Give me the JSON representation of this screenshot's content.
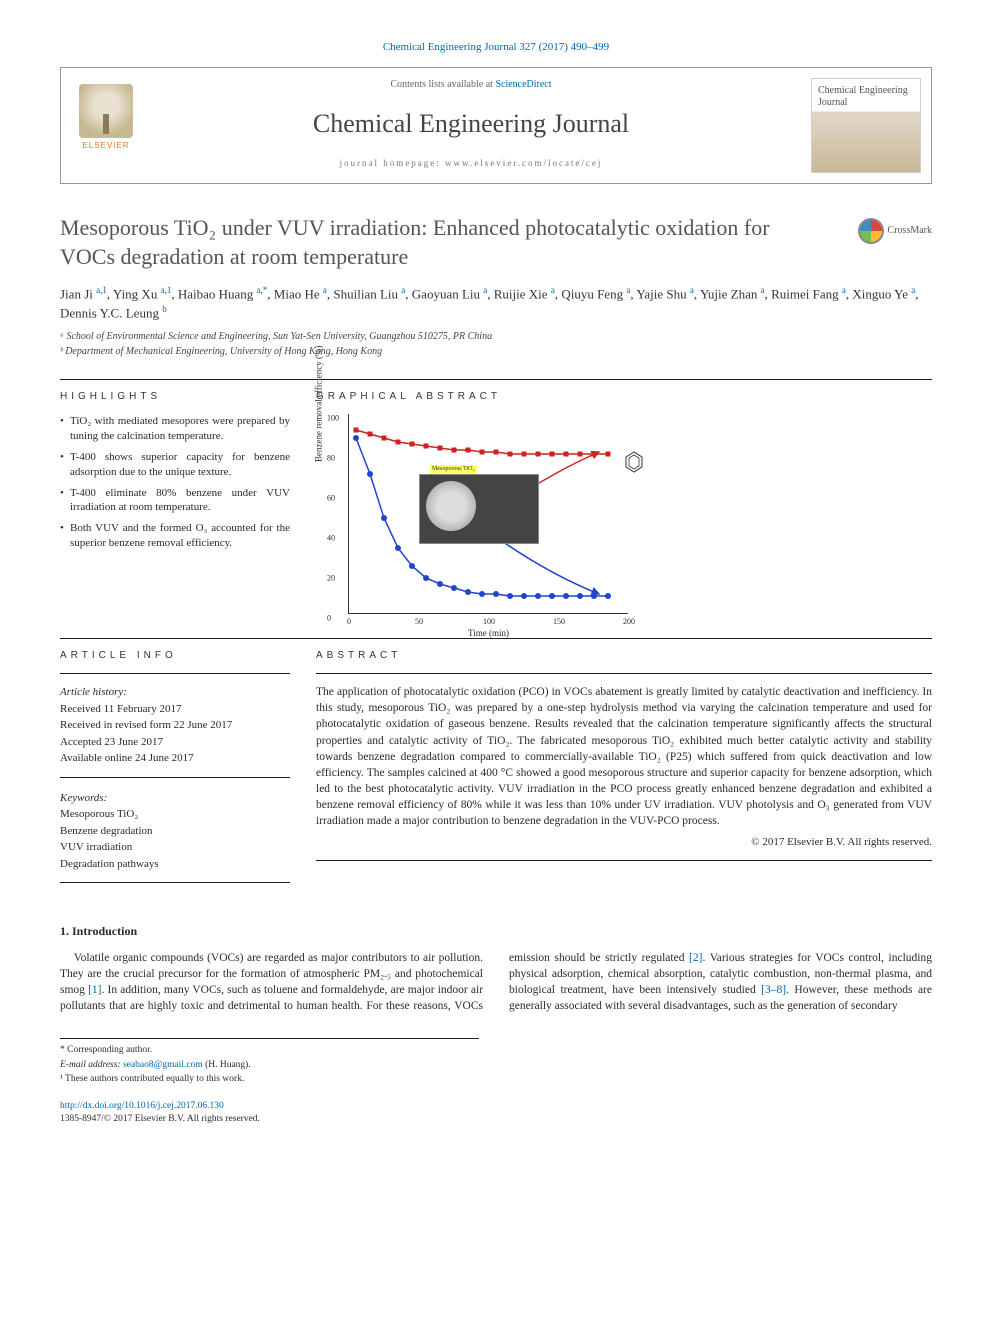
{
  "citation": "Chemical Engineering Journal 327 (2017) 490–499",
  "header": {
    "contents_prefix": "Contents lists available at ",
    "contents_link": "ScienceDirect",
    "journal_title": "Chemical Engineering Journal",
    "homepage_prefix": "journal homepage: ",
    "homepage_url": "www.elsevier.com/locate/cej",
    "publisher": "ELSEVIER",
    "cover_name": "Chemical Engineering Journal"
  },
  "crossmark_label": "CrossMark",
  "title": "Mesoporous TiO₂ under VUV irradiation: Enhanced photocatalytic oxidation for VOCs degradation at room temperature",
  "authors_html": "Jian Ji <sup>a,1</sup>, Ying Xu <sup>a,1</sup>, Haibao Huang <sup>a,*</sup>, Miao He <sup>a</sup>, Shuilian Liu <sup>a</sup>, Gaoyuan Liu <sup>a</sup>, Ruijie Xie <sup>a</sup>, Qiuyu Feng <sup>a</sup>, Yajie Shu <sup>a</sup>, Yujie Zhan <sup>a</sup>, Ruimei Fang <sup>a</sup>, Xinguo Ye <sup>a</sup>, Dennis Y.C. Leung <sup>b</sup>",
  "affiliations": [
    "ᵃ School of Environmental Science and Engineering, Sun Yat-Sen University, Guangzhou 510275, PR China",
    "ᵇ Department of Mechanical Engineering, University of Hong Kong, Hong Kong"
  ],
  "highlights_label": "HIGHLIGHTS",
  "highlights": [
    "TiO₂ with mediated mesopores were prepared by tuning the calcination temperature.",
    "T-400 shows superior capacity for benzene adsorption due to the unique texture.",
    "T-400 eliminate 80% benzene under VUV irradiation at room temperature.",
    "Both VUV and the formed O₃ accounted for the superior benzene removal efficiency."
  ],
  "graphical_label": "GRAPHICAL ABSTRACT",
  "chart": {
    "type": "line-scatter",
    "xlabel": "Time (min)",
    "ylabel": "Benzene removal efficiency (%)",
    "xlim": [
      0,
      200
    ],
    "ylim": [
      0,
      100
    ],
    "xticks": [
      0,
      50,
      100,
      150,
      200
    ],
    "yticks": [
      0,
      20,
      40,
      60,
      80,
      100
    ],
    "series": [
      {
        "name": "red",
        "marker": "square",
        "color": "#cc2222",
        "line_width": 1.5,
        "points": [
          [
            5,
            92
          ],
          [
            15,
            90
          ],
          [
            25,
            88
          ],
          [
            35,
            86
          ],
          [
            45,
            85
          ],
          [
            55,
            84
          ],
          [
            65,
            83
          ],
          [
            75,
            82
          ],
          [
            85,
            82
          ],
          [
            95,
            81
          ],
          [
            105,
            81
          ],
          [
            115,
            80
          ],
          [
            125,
            80
          ],
          [
            135,
            80
          ],
          [
            145,
            80
          ],
          [
            155,
            80
          ],
          [
            165,
            80
          ],
          [
            175,
            80
          ],
          [
            185,
            80
          ]
        ]
      },
      {
        "name": "blue",
        "marker": "circle",
        "color": "#2244cc",
        "line_width": 1.5,
        "points": [
          [
            5,
            88
          ],
          [
            15,
            70
          ],
          [
            25,
            48
          ],
          [
            35,
            33
          ],
          [
            45,
            24
          ],
          [
            55,
            18
          ],
          [
            65,
            15
          ],
          [
            75,
            13
          ],
          [
            85,
            11
          ],
          [
            95,
            10
          ],
          [
            105,
            10
          ],
          [
            115,
            9
          ],
          [
            125,
            9
          ],
          [
            135,
            9
          ],
          [
            145,
            9
          ],
          [
            155,
            9
          ],
          [
            165,
            9
          ],
          [
            175,
            9
          ],
          [
            185,
            9
          ]
        ]
      }
    ],
    "inset_label": "Mesoporous TiO₂",
    "background_color": "#ffffff",
    "axis_color": "#333333",
    "tick_fontsize": 8,
    "label_fontsize": 9
  },
  "article_info_label": "ARTICLE INFO",
  "article_info": {
    "history_label": "Article history:",
    "received": "Received 11 February 2017",
    "revised": "Received in revised form 22 June 2017",
    "accepted": "Accepted 23 June 2017",
    "online": "Available online 24 June 2017",
    "keywords_label": "Keywords:",
    "keywords": [
      "Mesoporous TiO₂",
      "Benzene degradation",
      "VUV irradiation",
      "Degradation pathways"
    ]
  },
  "abstract_label": "ABSTRACT",
  "abstract": "The application of photocatalytic oxidation (PCO) in VOCs abatement is greatly limited by catalytic deactivation and inefficiency. In this study, mesoporous TiO₂ was prepared by a one-step hydrolysis method via varying the calcination temperature and used for photocatalytic oxidation of gaseous benzene. Results revealed that the calcination temperature significantly affects the structural properties and catalytic activity of TiO₂. The fabricated mesoporous TiO₂ exhibited much better catalytic activity and stability towards benzene degradation compared to commercially-available TiO₂ (P25) which suffered from quick deactivation and low efficiency. The samples calcined at 400 °C showed a good mesoporous structure and superior capacity for benzene adsorption, which led to the best photocatalytic activity. VUV irradiation in the PCO process greatly enhanced benzene degradation and exhibited a benzene removal efficiency of 80% while it was less than 10% under UV irradiation. VUV photolysis and O₃ generated from VUV irradiation made a major contribution to benzene degradation in the VUV-PCO process.",
  "copyright": "© 2017 Elsevier B.V. All rights reserved.",
  "intro": {
    "heading": "1. Introduction",
    "para1": "Volatile organic compounds (VOCs) are regarded as major contributors to air pollution. They are the crucial precursor for the formation of atmospheric PM₂.₅ and photochemical smog [1]. In",
    "para2": "addition, many VOCs, such as toluene and formaldehyde, are major indoor air pollutants that are highly toxic and detrimental to human health. For these reasons, VOCs emission should be strictly regulated [2]. Various strategies for VOCs control, including physical adsorption, chemical absorption, catalytic combustion, non-thermal plasma, and biological treatment, have been intensively studied [3–8]. However, these methods are generally associated with several disadvantages, such as the generation of secondary"
  },
  "footnotes": {
    "corresponding": "* Corresponding author.",
    "email_label": "E-mail address: ",
    "email": "seabao8@gmail.com",
    "email_name": " (H. Huang).",
    "equal": "¹ These authors contributed equally to this work."
  },
  "doi": {
    "url": "http://dx.doi.org/10.1016/j.cej.2017.06.130",
    "issn": "1385-8947/© 2017 Elsevier B.V. All rights reserved."
  }
}
